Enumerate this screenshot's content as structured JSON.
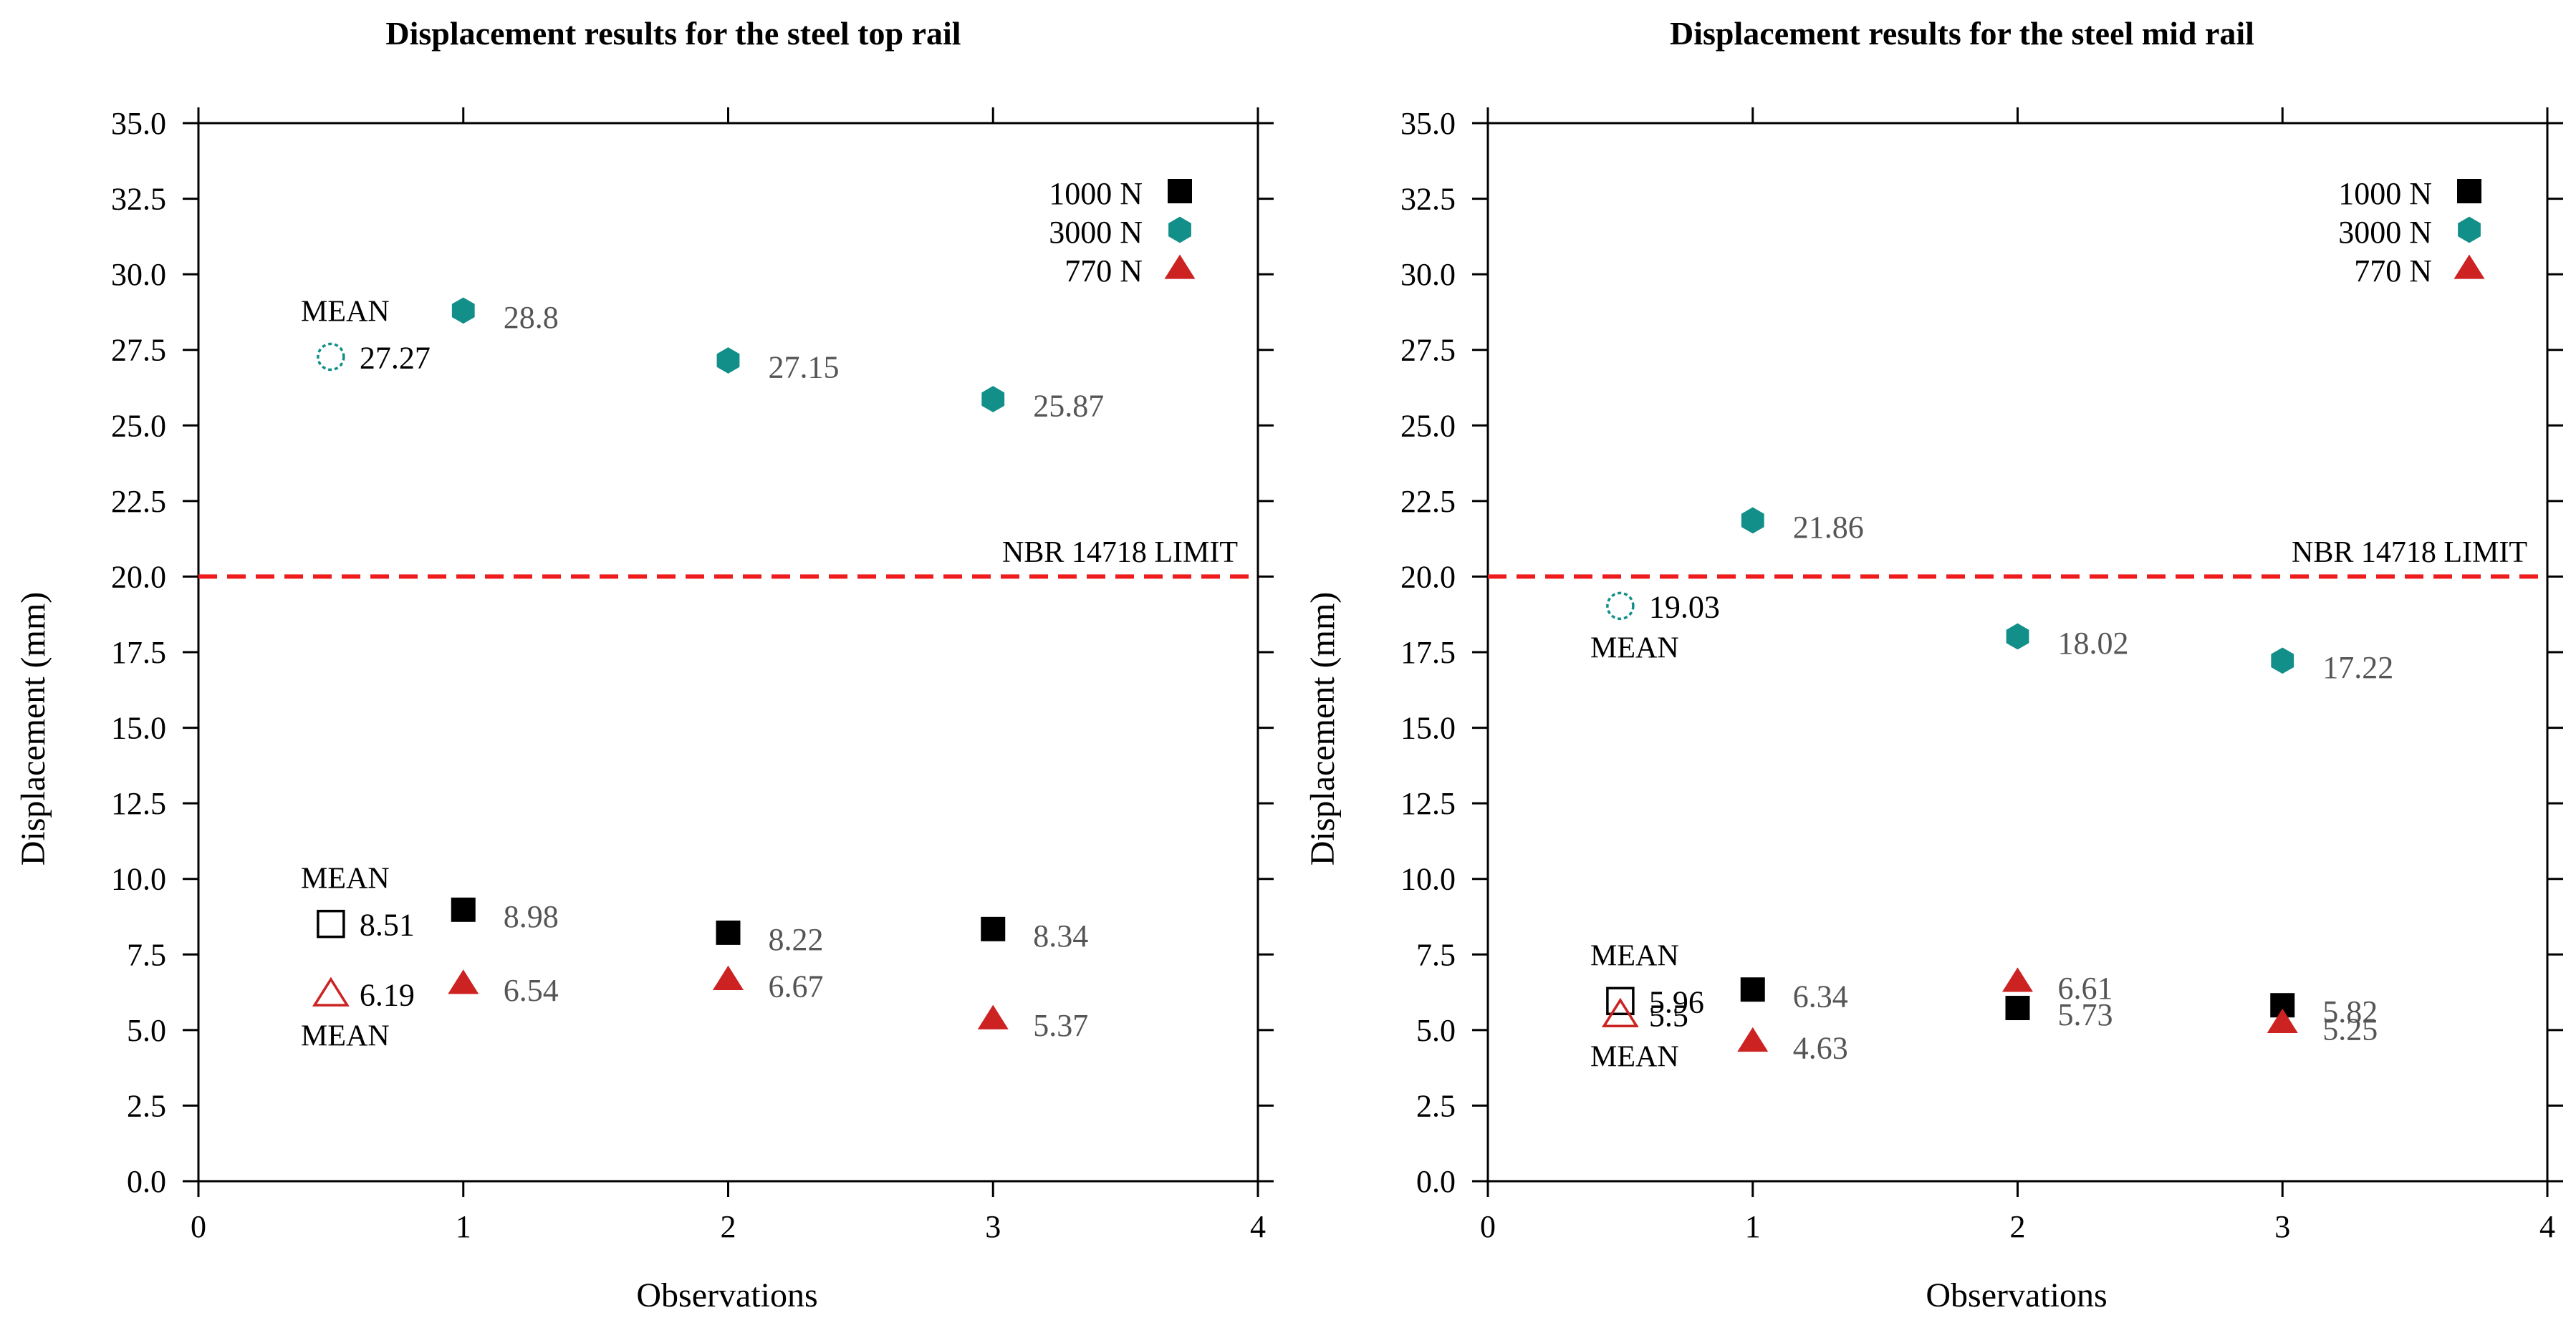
{
  "colors": {
    "f1000": "#000000",
    "f3000": "#138f8a",
    "f770": "#cc2222",
    "limit": "#ee1c1c",
    "valueLabel": "#555555",
    "meanLabel": "#000000",
    "axis": "#000000"
  },
  "chart_data": [
    {
      "type": "scatter",
      "title": "Displacement results for the steel top rail",
      "xlabel": "Observations",
      "ylabel": "Displacement (mm)",
      "xlim": [
        0,
        4
      ],
      "ylim": [
        0,
        35
      ],
      "xticks": [
        "0",
        "1",
        "2",
        "3",
        "4"
      ],
      "yticks": [
        "0.0",
        "2.5",
        "5.0",
        "7.5",
        "10.0",
        "12.5",
        "15.0",
        "17.5",
        "20.0",
        "22.5",
        "25.0",
        "27.5",
        "30.0",
        "32.5",
        "35.0"
      ],
      "limit": {
        "y": 20,
        "label": "NBR 14718 LIMIT"
      },
      "legend": {
        "position": "top-right",
        "entries": [
          {
            "label": "1000 N",
            "marker": "square",
            "color": "#000000"
          },
          {
            "label": "3000 N",
            "marker": "hexagon",
            "color": "#138f8a"
          },
          {
            "label": "770 N",
            "marker": "triangle",
            "color": "#cc2222"
          }
        ]
      },
      "series": [
        {
          "name": "1000 N",
          "marker": "square",
          "color": "#000000",
          "points": [
            {
              "x": 1,
              "y": 8.98,
              "label": "8.98"
            },
            {
              "x": 2,
              "y": 8.22,
              "label": "8.22"
            },
            {
              "x": 3,
              "y": 8.34,
              "label": "8.34"
            }
          ],
          "mean": {
            "x": 0.5,
            "y": 8.51,
            "label": "8.51",
            "text": "MEAN",
            "text_side": "above"
          }
        },
        {
          "name": "3000 N",
          "marker": "hexagon",
          "color": "#138f8a",
          "points": [
            {
              "x": 1,
              "y": 28.8,
              "label": "28.8"
            },
            {
              "x": 2,
              "y": 27.15,
              "label": "27.15"
            },
            {
              "x": 3,
              "y": 25.87,
              "label": "25.87"
            }
          ],
          "mean": {
            "x": 0.5,
            "y": 27.27,
            "label": "27.27",
            "text": "MEAN",
            "text_side": "above"
          }
        },
        {
          "name": "770 N",
          "marker": "triangle",
          "color": "#cc2222",
          "points": [
            {
              "x": 1,
              "y": 6.54,
              "label": "6.54"
            },
            {
              "x": 2,
              "y": 6.67,
              "label": "6.67"
            },
            {
              "x": 3,
              "y": 5.37,
              "label": "5.37"
            }
          ],
          "mean": {
            "x": 0.5,
            "y": 6.19,
            "label": "6.19",
            "text": "MEAN",
            "text_side": "below"
          }
        }
      ]
    },
    {
      "type": "scatter",
      "title": "Displacement results for the steel mid rail",
      "xlabel": "Observations",
      "ylabel": "Displacement (mm)",
      "xlim": [
        0,
        4
      ],
      "ylim": [
        0,
        35
      ],
      "xticks": [
        "0",
        "1",
        "2",
        "3",
        "4"
      ],
      "yticks": [
        "0.0",
        "2.5",
        "5.0",
        "7.5",
        "10.0",
        "12.5",
        "15.0",
        "17.5",
        "20.0",
        "22.5",
        "25.0",
        "27.5",
        "30.0",
        "32.5",
        "35.0"
      ],
      "limit": {
        "y": 20,
        "label": "NBR 14718 LIMIT"
      },
      "legend": {
        "position": "top-right",
        "entries": [
          {
            "label": "1000 N",
            "marker": "square",
            "color": "#000000"
          },
          {
            "label": "3000 N",
            "marker": "hexagon",
            "color": "#138f8a"
          },
          {
            "label": "770 N",
            "marker": "triangle",
            "color": "#cc2222"
          }
        ]
      },
      "series": [
        {
          "name": "1000 N",
          "marker": "square",
          "color": "#000000",
          "points": [
            {
              "x": 1,
              "y": 6.34,
              "label": "6.34"
            },
            {
              "x": 2,
              "y": 5.73,
              "label": "5.73"
            },
            {
              "x": 3,
              "y": 5.82,
              "label": "5.82"
            }
          ],
          "mean": {
            "x": 0.5,
            "y": 5.96,
            "label": "5.96",
            "text": "MEAN",
            "text_side": "above"
          }
        },
        {
          "name": "3000 N",
          "marker": "hexagon",
          "color": "#138f8a",
          "points": [
            {
              "x": 1,
              "y": 21.86,
              "label": "21.86"
            },
            {
              "x": 2,
              "y": 18.02,
              "label": "18.02"
            },
            {
              "x": 3,
              "y": 17.22,
              "label": "17.22"
            }
          ],
          "mean": {
            "x": 0.5,
            "y": 19.03,
            "label": "19.03",
            "text": "MEAN",
            "text_side": "below"
          }
        },
        {
          "name": "770 N",
          "marker": "triangle",
          "color": "#cc2222",
          "points": [
            {
              "x": 1,
              "y": 4.63,
              "label": "4.63"
            },
            {
              "x": 2,
              "y": 6.61,
              "label": "6.61"
            },
            {
              "x": 3,
              "y": 5.25,
              "label": "5.25"
            }
          ],
          "mean": {
            "x": 0.5,
            "y": 5.5,
            "label": "5.5",
            "text": "MEAN",
            "text_side": "below"
          }
        }
      ]
    }
  ]
}
